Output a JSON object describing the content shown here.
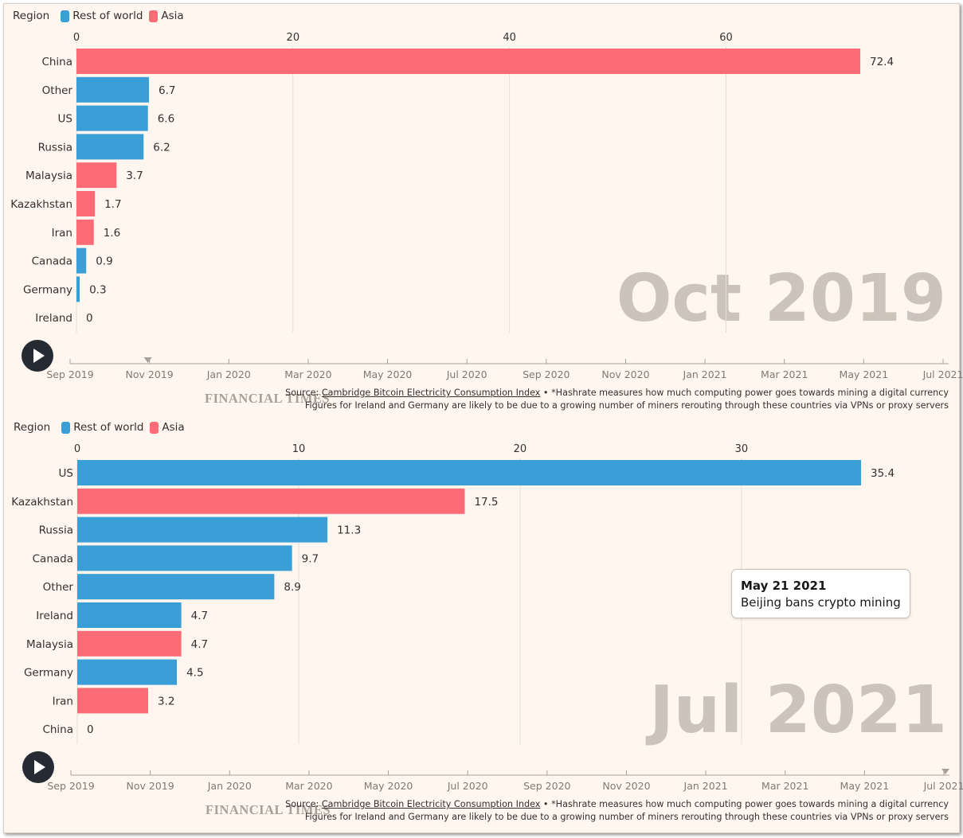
{
  "chart_data": [
    {
      "type": "bar",
      "period_label": "Oct 2019",
      "legend_title": "Region",
      "legend": [
        {
          "name": "Rest of world",
          "color": "#3a9fd6"
        },
        {
          "name": "Asia",
          "color": "#fd6b76"
        }
      ],
      "xlim": [
        0,
        72.4
      ],
      "xticks": [
        0,
        20,
        40,
        60
      ],
      "grid": true,
      "categories": [
        "China",
        "Other",
        "US",
        "Russia",
        "Malaysia",
        "Kazakhstan",
        "Iran",
        "Canada",
        "Germany",
        "Ireland"
      ],
      "values": [
        72.4,
        6.7,
        6.6,
        6.2,
        3.7,
        1.7,
        1.6,
        0.9,
        0.3,
        0
      ],
      "regions": [
        "Asia",
        "Rest of world",
        "Rest of world",
        "Rest of world",
        "Asia",
        "Asia",
        "Asia",
        "Rest of world",
        "Rest of world",
        "Rest of world"
      ],
      "timeline": {
        "labels": [
          "Sep 2019",
          "Nov 2019",
          "Jan 2020",
          "Mar 2020",
          "May 2020",
          "Jul 2020",
          "Sep 2020",
          "Nov 2020",
          "Jan 2021",
          "Mar 2021",
          "May 2021",
          "Jul 2021"
        ],
        "position": 1
      }
    },
    {
      "type": "bar",
      "period_label": "Jul 2021",
      "legend_title": "Region",
      "legend": [
        {
          "name": "Rest of world",
          "color": "#3a9fd6"
        },
        {
          "name": "Asia",
          "color": "#fd6b76"
        }
      ],
      "xlim": [
        0,
        35.4
      ],
      "xticks": [
        0,
        10,
        20,
        30
      ],
      "grid": true,
      "categories": [
        "US",
        "Kazakhstan",
        "Russia",
        "Canada",
        "Other",
        "Ireland",
        "Malaysia",
        "Germany",
        "Iran",
        "China"
      ],
      "values": [
        35.4,
        17.5,
        11.3,
        9.7,
        8.9,
        4.7,
        4.7,
        4.5,
        3.2,
        0
      ],
      "regions": [
        "Rest of world",
        "Asia",
        "Rest of world",
        "Rest of world",
        "Rest of world",
        "Rest of world",
        "Asia",
        "Rest of world",
        "Asia",
        "Asia"
      ],
      "timeline": {
        "labels": [
          "Sep 2019",
          "Nov 2019",
          "Jan 2020",
          "Mar 2020",
          "May 2020",
          "Jul 2020",
          "Sep 2020",
          "Nov 2020",
          "Jan 2021",
          "Mar 2021",
          "May 2021",
          "Jul 2021"
        ],
        "position": 11
      },
      "annotation": {
        "date": "May 21 2021",
        "text": "Beijing bans crypto mining"
      }
    }
  ],
  "branding": {
    "logo": "FINANCIAL TIMES"
  },
  "footer": {
    "source_prefix": "Source: ",
    "source_link": "Cambridge Bitcoin Electricity Consumption Index",
    "source_note": " • *Hashrate measures how much computing power goes towards mining a digital currency",
    "note_line2": "Figures for Ireland and Germany are likely to be due to a growing number of miners rerouting through these countries via VPNs or proxy servers"
  },
  "colors": {
    "rest_of_world": "#3a9fd6",
    "asia": "#fd6b76",
    "background": "#fff7ef",
    "period_text": "#cdc3ba"
  }
}
